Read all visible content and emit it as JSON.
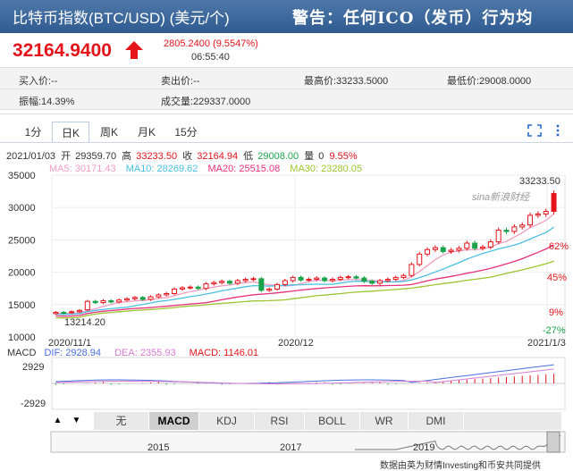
{
  "header": {
    "title": "比特币指数(BTC/USD) (美元/个)",
    "warning": "警告：任何ICO（发币）行为均"
  },
  "price": {
    "current": "32164.9400",
    "change": "2805.2400 (9.5547%)",
    "time": "06:55:40"
  },
  "quotes": {
    "buy": "买入价:--",
    "sell": "卖出价:--",
    "high": "最高价:33233.5000",
    "low": "最低价:29008.0000",
    "amplitude": "振幅:14.39%",
    "volume": "成交量:229337.0000"
  },
  "tabs": [
    "1分",
    "日K",
    "周K",
    "月K",
    "15分"
  ],
  "ohlc_line": {
    "date": "2021/01/03",
    "open_label": "开",
    "open": "29359.70",
    "high_label": "高",
    "high": "33233.50",
    "close_label": "收",
    "close": "32164.94",
    "low_label": "低",
    "low": "29008.00",
    "vol_label": "量",
    "vol": "0",
    "pct": "9.55%"
  },
  "ma_line": {
    "ma5": "MA5: 30171.43",
    "ma10": "MA10: 28269.62",
    "ma20": "MA20: 25515.08",
    "ma30": "MA30: 23280.05"
  },
  "watermark": "sina新浪财经",
  "annotations": {
    "max": "33233.50",
    "min": "13214.20"
  },
  "chart_labels": {
    "right_ticks": [
      "62%",
      "45%",
      "9%",
      "-27%"
    ]
  },
  "macd_line": {
    "name": "MACD",
    "dif": "DIF: 2928.94",
    "dea": "DEA: 2355.93",
    "macd": "MACD: 1146.01"
  },
  "macd_ticks": [
    "2929",
    "-2929"
  ],
  "indicators": [
    "无",
    "MACD",
    "KDJ",
    "RSI",
    "BOLL",
    "WR",
    "DMI"
  ],
  "nav": {
    "up": "▲",
    "down": "▼"
  },
  "timeline_years": [
    "2015",
    "2017",
    "2019"
  ],
  "footer": "数据由英为财情Investing和币安共同提供",
  "colors": {
    "up": "#e4141b",
    "down": "#1aa34a",
    "ma5": "#f19ec2",
    "ma10": "#4bc0e0",
    "ma20": "#e8317b",
    "ma30": "#9ec430",
    "dif": "#4b6fde",
    "dea": "#d77bd3"
  },
  "chart_data": {
    "type": "candlestick",
    "x_labels": [
      "2020/11/1",
      "2020/12",
      "2021/1/3"
    ],
    "y_ticks": [
      35000,
      30000,
      25000,
      20000,
      15000,
      10000
    ],
    "ylim": [
      10000,
      35000
    ],
    "candles": [
      [
        13600,
        13800
      ],
      [
        13800,
        13700
      ],
      [
        13750,
        13900
      ],
      [
        13900,
        14100
      ],
      [
        14200,
        15500
      ],
      [
        15500,
        15300
      ],
      [
        15300,
        15600
      ],
      [
        15600,
        15400
      ],
      [
        15400,
        15700
      ],
      [
        15700,
        15900
      ],
      [
        15900,
        16100
      ],
      [
        16100,
        15800
      ],
      [
        15800,
        16200
      ],
      [
        16200,
        16500
      ],
      [
        16500,
        16700
      ],
      [
        16700,
        17400
      ],
      [
        17400,
        17600
      ],
      [
        17600,
        17700
      ],
      [
        17700,
        17500
      ],
      [
        17500,
        18200
      ],
      [
        18200,
        18400
      ],
      [
        18400,
        18600
      ],
      [
        18600,
        18300
      ],
      [
        18300,
        18700
      ],
      [
        18700,
        18900
      ],
      [
        18900,
        19000
      ],
      [
        19000,
        17200
      ],
      [
        17200,
        17400
      ],
      [
        17400,
        18100
      ],
      [
        18100,
        18700
      ],
      [
        18700,
        19200
      ],
      [
        19200,
        18800
      ],
      [
        18800,
        18900
      ],
      [
        18900,
        19100
      ],
      [
        19100,
        18700
      ],
      [
        18700,
        18900
      ],
      [
        18900,
        19200
      ],
      [
        19200,
        19300
      ],
      [
        19300,
        19100
      ],
      [
        19100,
        18600
      ],
      [
        18600,
        18300
      ],
      [
        18300,
        18700
      ],
      [
        18700,
        18900
      ],
      [
        18900,
        19200
      ],
      [
        19200,
        19500
      ],
      [
        19500,
        21200
      ],
      [
        21200,
        22800
      ],
      [
        22800,
        23500
      ],
      [
        23500,
        23800
      ],
      [
        23800,
        23200
      ],
      [
        23200,
        23400
      ],
      [
        23400,
        23700
      ],
      [
        23700,
        24500
      ],
      [
        24500,
        23700
      ],
      [
        23700,
        23900
      ],
      [
        23900,
        24700
      ],
      [
        24700,
        26500
      ],
      [
        26500,
        26300
      ],
      [
        26300,
        27000
      ],
      [
        27000,
        27300
      ],
      [
        27300,
        28800
      ],
      [
        28800,
        29000
      ],
      [
        29000,
        29400
      ],
      [
        29400,
        32164
      ]
    ]
  }
}
